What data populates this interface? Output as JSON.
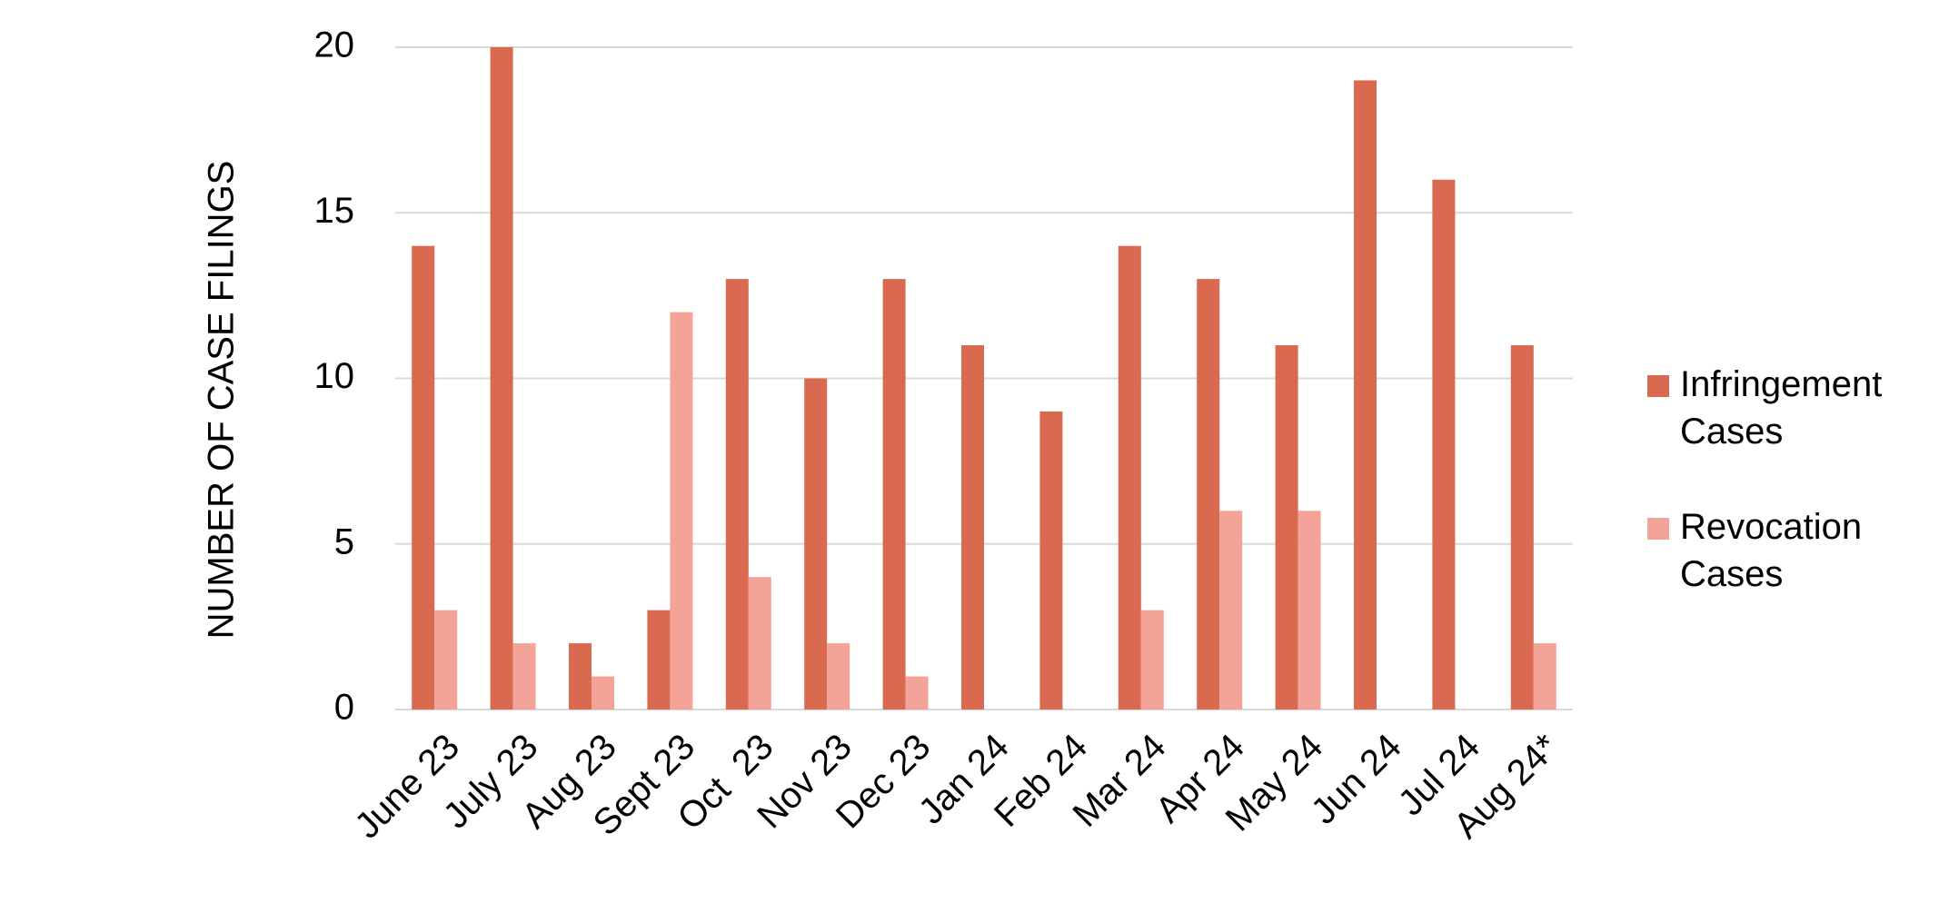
{
  "chart_data": {
    "type": "bar",
    "y_axis_label": "NUMBER OF CASE FILINGS",
    "categories": [
      "June 23",
      "July 23",
      "Aug 23",
      "Sept 23",
      "Oct  23",
      "Nov 23",
      "Dec 23",
      "Jan 24",
      "Feb 24",
      "Mar 24",
      "Apr 24",
      "May 24",
      "Jun 24",
      "Jul 24",
      "Aug 24*"
    ],
    "series": [
      {
        "name": "Infringement Cases",
        "color": "#d9694f",
        "values": [
          14,
          20,
          2,
          3,
          13,
          10,
          13,
          11,
          9,
          14,
          13,
          11,
          19,
          16,
          11
        ]
      },
      {
        "name": "Revocation Cases",
        "color": "#f4a399",
        "values": [
          3,
          2,
          1,
          12,
          4,
          2,
          1,
          0,
          0,
          3,
          6,
          6,
          0,
          0,
          2
        ]
      }
    ],
    "ylim": [
      0,
      20
    ],
    "yticks": [
      0,
      5,
      10,
      15,
      20
    ],
    "grid": true,
    "legend": "right"
  }
}
